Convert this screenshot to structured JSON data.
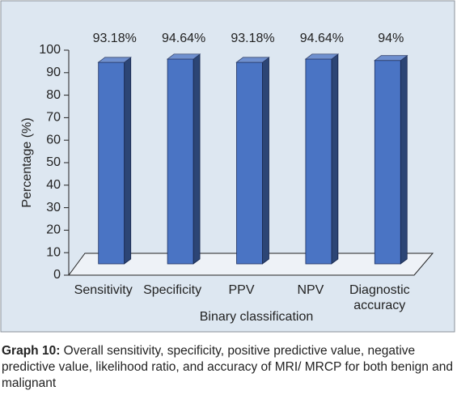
{
  "chart_data": {
    "type": "bar3d",
    "ylabel": "Percentage (%)",
    "xlabel": "Binary classification",
    "categories": [
      "Sensitivity",
      "Specificity",
      "PPV",
      "NPV",
      "Diagnostic accuracy"
    ],
    "values": [
      93.18,
      94.64,
      93.18,
      94.64,
      94
    ],
    "value_labels": [
      "93.18%",
      "94.64%",
      "93.18%",
      "94.64%",
      "94%"
    ],
    "color": "#4a74c4",
    "ylim": [
      0,
      100
    ],
    "yticks": [
      0,
      10,
      20,
      30,
      40,
      50,
      60,
      70,
      80,
      90,
      100
    ]
  },
  "caption": {
    "label": "Graph 10:",
    "text": "Overall sensitivity, specificity, positive predictive value, negative predictive value, likelihood ratio, and accuracy of MRI/ MRCP for both benign and malignant"
  }
}
